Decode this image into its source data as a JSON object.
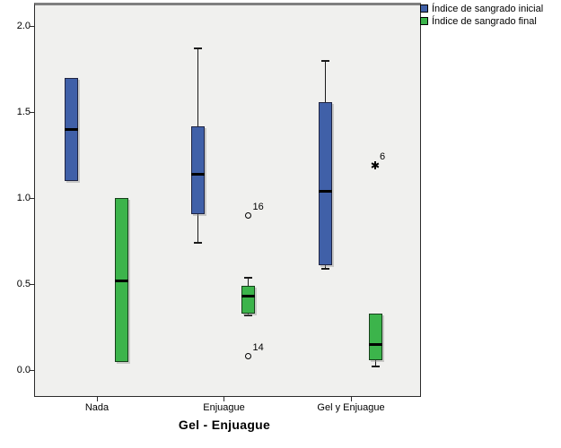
{
  "chart_data": {
    "type": "boxplot",
    "title": "",
    "xlabel": "Gel - Enjuague",
    "ylabel": "",
    "grid": false,
    "legend_position": "top-right",
    "plot_bg_color": "#f0f0ee",
    "frame_top_color": "#7f7f7f",
    "axis_color": "#2b2b2b",
    "yaxis": {
      "ticks": [
        "0.0",
        "0.5",
        "1.0",
        "1.5",
        "2.0"
      ],
      "range_shown": [
        -0.15,
        2.13
      ]
    },
    "categories": [
      "Nada",
      "Enjuague",
      "Gel y Enjuague"
    ],
    "series": [
      {
        "name": "Índice de sangrado inicial",
        "color": "#4060a8",
        "border_color": "#1f2442",
        "boxes": [
          {
            "low": 1.1,
            "q1": 1.1,
            "median": 1.4,
            "q3": 1.7,
            "high": 1.7
          },
          {
            "low": 0.74,
            "q1": 0.91,
            "median": 1.14,
            "q3": 1.42,
            "high": 1.87
          },
          {
            "low": 0.59,
            "q1": 0.61,
            "median": 1.04,
            "q3": 1.56,
            "high": 1.8
          }
        ],
        "outliers": []
      },
      {
        "name": "Índice de sangrado final",
        "color": "#3cb44b",
        "border_color": "#153f1a",
        "boxes": [
          {
            "low": 0.05,
            "q1": 0.05,
            "median": 0.52,
            "q3": 1.0,
            "high": 1.0
          },
          {
            "low": 0.32,
            "q1": 0.33,
            "median": 0.43,
            "q3": 0.49,
            "high": 0.54
          },
          {
            "low": 0.02,
            "q1": 0.06,
            "median": 0.15,
            "q3": 0.33,
            "high": 0.33
          }
        ],
        "outliers": [
          {
            "category_index": 1,
            "value": 0.9,
            "label": "16",
            "marker": "circle"
          },
          {
            "category_index": 1,
            "value": 0.08,
            "label": "14",
            "marker": "circle"
          },
          {
            "category_index": 2,
            "value": 1.19,
            "label": "6",
            "marker": "star"
          }
        ]
      }
    ]
  }
}
